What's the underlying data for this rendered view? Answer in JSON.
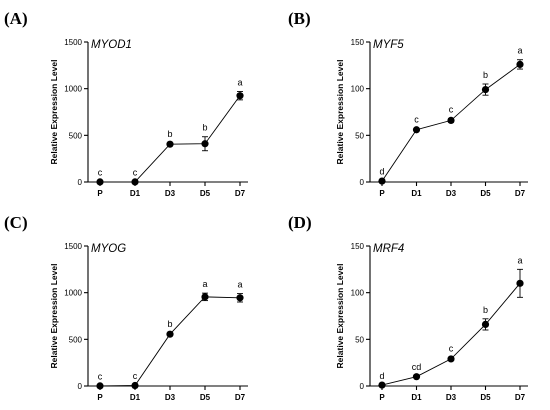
{
  "chart_data": [
    {
      "panel_label": "(A)",
      "type": "line",
      "title": "MYOD1",
      "ylabel": "Relative Expression Level",
      "xlabel": "",
      "categories": [
        "P",
        "D1",
        "D3",
        "D5",
        "D7"
      ],
      "values": [
        1,
        1,
        405,
        410,
        925
      ],
      "errors": [
        2,
        2,
        12,
        75,
        45
      ],
      "significance": [
        "c",
        "c",
        "b",
        "b",
        "a"
      ],
      "ylim": [
        0,
        1500
      ],
      "yticks": [
        0,
        500,
        1000,
        1500
      ],
      "grid": false,
      "legend": "none"
    },
    {
      "panel_label": "(B)",
      "type": "line",
      "title": "MYF5",
      "ylabel": "Relative Expression Level",
      "xlabel": "",
      "categories": [
        "P",
        "D1",
        "D3",
        "D5",
        "D7"
      ],
      "values": [
        1,
        56,
        66,
        99,
        126
      ],
      "errors": [
        0.5,
        1.5,
        2,
        6,
        5
      ],
      "significance": [
        "d",
        "c",
        "c",
        "b",
        "a"
      ],
      "ylim": [
        0,
        150
      ],
      "yticks": [
        0,
        50,
        100,
        150
      ],
      "grid": false,
      "legend": "none"
    },
    {
      "panel_label": "(C)",
      "type": "line",
      "title": "MYOG",
      "ylabel": "Relative Expression Level",
      "xlabel": "",
      "categories": [
        "P",
        "D1",
        "D3",
        "D5",
        "D7"
      ],
      "values": [
        1,
        5,
        555,
        955,
        945
      ],
      "errors": [
        2,
        4,
        12,
        40,
        45
      ],
      "significance": [
        "c",
        "c",
        "b",
        "a",
        "a"
      ],
      "ylim": [
        0,
        1500
      ],
      "yticks": [
        0,
        500,
        1000,
        1500
      ],
      "grid": false,
      "legend": "none"
    },
    {
      "panel_label": "(D)",
      "type": "line",
      "title": "MRF4",
      "ylabel": "Relative Expression Level",
      "xlabel": "",
      "categories": [
        "P",
        "D1",
        "D3",
        "D5",
        "D7"
      ],
      "values": [
        1,
        10,
        29,
        66,
        110
      ],
      "errors": [
        0.3,
        0.8,
        1.5,
        6,
        15
      ],
      "significance": [
        "d",
        "cd",
        "c",
        "b",
        "a"
      ],
      "ylim": [
        0,
        150
      ],
      "yticks": [
        0,
        50,
        100,
        150
      ],
      "grid": false,
      "legend": "none"
    }
  ]
}
